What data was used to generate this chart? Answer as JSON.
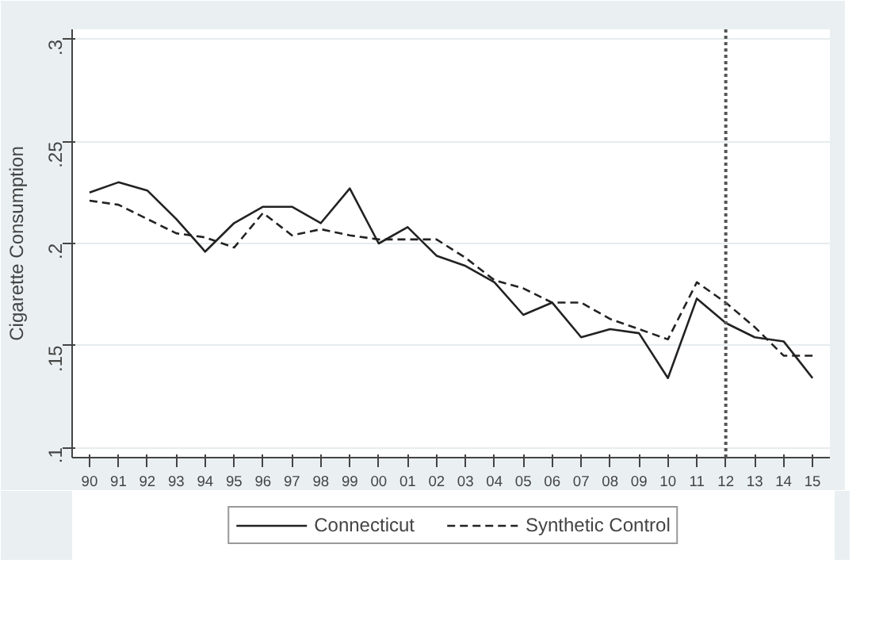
{
  "chart_data": {
    "type": "line",
    "ylabel": "Cigarette Consumption",
    "categories": [
      "90",
      "91",
      "92",
      "93",
      "94",
      "95",
      "96",
      "97",
      "98",
      "99",
      "00",
      "01",
      "02",
      "03",
      "04",
      "05",
      "06",
      "07",
      "08",
      "09",
      "10",
      "11",
      "12",
      "13",
      "14",
      "15"
    ],
    "series": [
      {
        "name": "Connecticut",
        "color": "#222222",
        "line_style": "solid",
        "values": [
          0.225,
          0.23,
          0.226,
          0.212,
          0.196,
          0.21,
          0.218,
          0.218,
          0.21,
          0.227,
          0.2,
          0.208,
          0.194,
          0.189,
          0.181,
          0.165,
          0.171,
          0.154,
          0.158,
          0.156,
          0.134,
          0.173,
          0.161,
          0.154,
          0.152,
          0.134
        ]
      },
      {
        "name": "Synthetic Control",
        "color": "#222222",
        "line_style": "dashed",
        "values": [
          0.221,
          0.219,
          0.212,
          0.205,
          0.203,
          0.198,
          0.215,
          0.204,
          0.207,
          0.204,
          0.202,
          0.202,
          0.202,
          0.193,
          0.182,
          0.178,
          0.171,
          0.171,
          0.163,
          0.158,
          0.153,
          0.181,
          0.171,
          0.159,
          0.145,
          0.145
        ]
      }
    ],
    "ylim": [
      0.095,
      0.305
    ],
    "yticks": [
      {
        "value": 0.1,
        "label": ".1"
      },
      {
        "value": 0.15,
        "label": ".15"
      },
      {
        "value": 0.2,
        "label": ".2"
      },
      {
        "value": 0.25,
        "label": ".25"
      },
      {
        "value": 0.3,
        "label": ".3"
      }
    ],
    "ref_lines": [
      {
        "axis": "x",
        "value": "12",
        "color": "#555555",
        "line_style": "dotted"
      }
    ],
    "grid": "y",
    "legend": "bottom",
    "marker": "none"
  }
}
